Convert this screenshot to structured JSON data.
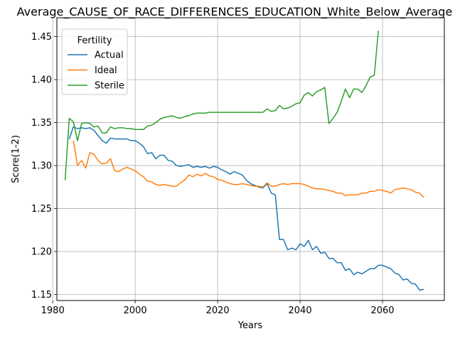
{
  "chart_data": {
    "type": "line",
    "title": "Average_CAUSE_OF_RACE_DIFFERENCES_EDUCATION_White_Below_Average",
    "xlabel": "Years",
    "ylabel": "Score(1-2)",
    "xlim": [
      1981,
      2075
    ],
    "ylim": [
      1.143,
      1.472
    ],
    "x_ticks": [
      1980,
      2000,
      2020,
      2040,
      2060
    ],
    "y_ticks": [
      1.15,
      1.2,
      1.25,
      1.3,
      1.35,
      1.4,
      1.45
    ],
    "y_tick_labels": [
      "1.15",
      "1.20",
      "1.25",
      "1.30",
      "1.35",
      "1.40",
      "1.45"
    ],
    "grid": true,
    "legend": {
      "title": "Fertility",
      "placement": "top-left"
    },
    "series": [
      {
        "name": "Actual",
        "color": "#1f77b4",
        "x": [
          1984,
          1985,
          1986,
          1987,
          1988,
          1989,
          1990,
          1991,
          1992,
          1993,
          1994,
          1995,
          1996,
          1997,
          1998,
          1999,
          2000,
          2001,
          2002,
          2003,
          2004,
          2005,
          2006,
          2007,
          2008,
          2009,
          2010,
          2011,
          2012,
          2013,
          2014,
          2015,
          2016,
          2017,
          2018,
          2019,
          2020,
          2021,
          2022,
          2023,
          2024,
          2025,
          2026,
          2027,
          2028,
          2029,
          2030,
          2031,
          2032,
          2033,
          2034,
          2035,
          2036,
          2037,
          2038,
          2039,
          2040,
          2041,
          2042,
          2043,
          2044,
          2045,
          2046,
          2047,
          2048,
          2049,
          2050,
          2051,
          2052,
          2053,
          2054,
          2055,
          2056,
          2057,
          2058,
          2059,
          2060,
          2061,
          2062,
          2063,
          2064,
          2065,
          2066,
          2067,
          2068,
          2069,
          2070
        ],
        "values": [
          1.331,
          1.345,
          1.343,
          1.344,
          1.343,
          1.344,
          1.341,
          1.335,
          1.329,
          1.326,
          1.332,
          1.331,
          1.331,
          1.331,
          1.331,
          1.329,
          1.329,
          1.326,
          1.322,
          1.314,
          1.315,
          1.308,
          1.312,
          1.312,
          1.306,
          1.305,
          1.3,
          1.299,
          1.3,
          1.301,
          1.298,
          1.299,
          1.298,
          1.299,
          1.297,
          1.299,
          1.298,
          1.295,
          1.293,
          1.29,
          1.293,
          1.291,
          1.289,
          1.283,
          1.279,
          1.277,
          1.275,
          1.274,
          1.279,
          1.268,
          1.266,
          1.214,
          1.214,
          1.202,
          1.204,
          1.202,
          1.209,
          1.206,
          1.213,
          1.202,
          1.206,
          1.198,
          1.199,
          1.192,
          1.192,
          1.187,
          1.187,
          1.178,
          1.18,
          1.173,
          1.176,
          1.174,
          1.177,
          1.18,
          1.18,
          1.184,
          1.184,
          1.182,
          1.18,
          1.175,
          1.173,
          1.167,
          1.168,
          1.163,
          1.162,
          1.155,
          1.156
        ]
      },
      {
        "name": "Ideal",
        "color": "#ff7f0e",
        "x": [
          1985,
          1986,
          1987,
          1988,
          1989,
          1990,
          1991,
          1992,
          1993,
          1994,
          1995,
          1996,
          1997,
          1998,
          1999,
          2000,
          2001,
          2002,
          2003,
          2004,
          2005,
          2006,
          2007,
          2008,
          2009,
          2010,
          2011,
          2012,
          2013,
          2014,
          2015,
          2016,
          2017,
          2018,
          2019,
          2020,
          2021,
          2022,
          2023,
          2024,
          2025,
          2026,
          2027,
          2028,
          2029,
          2030,
          2031,
          2032,
          2033,
          2034,
          2035,
          2036,
          2037,
          2038,
          2039,
          2040,
          2041,
          2042,
          2043,
          2044,
          2045,
          2046,
          2047,
          2048,
          2049,
          2050,
          2051,
          2052,
          2053,
          2054,
          2055,
          2056,
          2057,
          2058,
          2059,
          2060,
          2061,
          2062,
          2063,
          2064,
          2065,
          2066,
          2067,
          2068,
          2069,
          2070
        ],
        "values": [
          1.329,
          1.3,
          1.306,
          1.297,
          1.315,
          1.313,
          1.306,
          1.302,
          1.303,
          1.308,
          1.294,
          1.293,
          1.296,
          1.298,
          1.296,
          1.294,
          1.29,
          1.287,
          1.282,
          1.281,
          1.278,
          1.277,
          1.278,
          1.277,
          1.276,
          1.276,
          1.28,
          1.283,
          1.289,
          1.287,
          1.29,
          1.288,
          1.291,
          1.288,
          1.287,
          1.284,
          1.283,
          1.281,
          1.279,
          1.278,
          1.278,
          1.279,
          1.278,
          1.277,
          1.276,
          1.276,
          1.275,
          1.28,
          1.276,
          1.276,
          1.278,
          1.279,
          1.278,
          1.279,
          1.279,
          1.279,
          1.278,
          1.276,
          1.274,
          1.273,
          1.273,
          1.272,
          1.271,
          1.27,
          1.268,
          1.268,
          1.265,
          1.266,
          1.266,
          1.266,
          1.268,
          1.268,
          1.27,
          1.27,
          1.272,
          1.271,
          1.27,
          1.268,
          1.272,
          1.273,
          1.274,
          1.273,
          1.272,
          1.269,
          1.268,
          1.263
        ]
      },
      {
        "name": "Sterile",
        "color": "#2ca02c",
        "x": [
          1983,
          1984,
          1985,
          1986,
          1987,
          1988,
          1989,
          1990,
          1991,
          1992,
          1993,
          1994,
          1995,
          1996,
          1997,
          1998,
          1999,
          2000,
          2001,
          2002,
          2003,
          2004,
          2005,
          2006,
          2007,
          2008,
          2009,
          2010,
          2011,
          2012,
          2013,
          2014,
          2015,
          2016,
          2017,
          2018,
          2019,
          2020,
          2021,
          2022,
          2023,
          2024,
          2025,
          2026,
          2027,
          2028,
          2029,
          2030,
          2031,
          2032,
          2033,
          2034,
          2035,
          2036,
          2037,
          2038,
          2039,
          2040,
          2041,
          2042,
          2043,
          2044,
          2045,
          2046,
          2047,
          2048,
          2049,
          2050,
          2051,
          2052,
          2053,
          2054,
          2055,
          2056,
          2057,
          2058,
          2059
        ],
        "values": [
          1.283,
          1.355,
          1.351,
          1.329,
          1.349,
          1.35,
          1.349,
          1.345,
          1.346,
          1.338,
          1.338,
          1.345,
          1.343,
          1.344,
          1.344,
          1.343,
          1.343,
          1.342,
          1.342,
          1.342,
          1.346,
          1.347,
          1.35,
          1.354,
          1.356,
          1.357,
          1.358,
          1.356,
          1.355,
          1.357,
          1.358,
          1.36,
          1.361,
          1.361,
          1.361,
          1.362,
          1.362,
          1.362,
          1.362,
          1.362,
          1.362,
          1.362,
          1.362,
          1.362,
          1.362,
          1.362,
          1.362,
          1.362,
          1.362,
          1.366,
          1.363,
          1.364,
          1.37,
          1.366,
          1.367,
          1.369,
          1.372,
          1.373,
          1.382,
          1.385,
          1.381,
          1.386,
          1.388,
          1.391,
          1.349,
          1.355,
          1.362,
          1.375,
          1.389,
          1.379,
          1.389,
          1.389,
          1.385,
          1.393,
          1.403,
          1.405,
          1.457
        ]
      }
    ]
  }
}
